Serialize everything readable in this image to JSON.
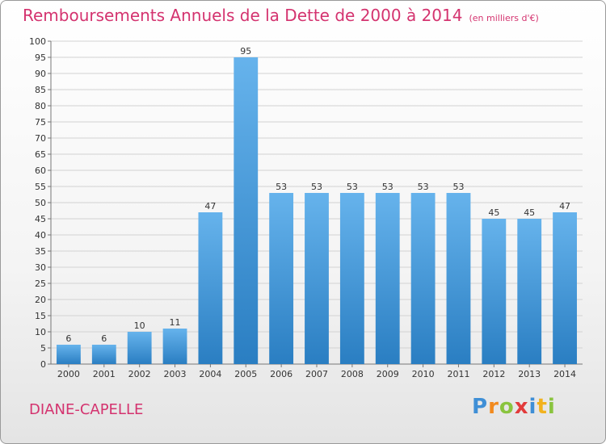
{
  "header": {
    "title": "Remboursements Annuels de la Dette de 2000 à 2014",
    "unit": "(en milliers d'€)"
  },
  "commune": "DIANE-CAPELLE",
  "logo": {
    "text": "Proxiti",
    "letters": [
      {
        "ch": "P",
        "color": "#3f8fd6"
      },
      {
        "ch": "r",
        "color": "#f28a1e"
      },
      {
        "ch": "o",
        "color": "#8ac43f"
      },
      {
        "ch": "x",
        "color": "#e23b3b"
      },
      {
        "ch": "i",
        "color": "#3f8fd6"
      },
      {
        "ch": "t",
        "color": "#f2b21e"
      },
      {
        "ch": "i",
        "color": "#8ac43f"
      }
    ]
  },
  "colors": {
    "bar_light": "#66b3ec",
    "bar_dark": "#2a7ec2",
    "title": "#d4336f"
  },
  "chart_data": {
    "type": "bar",
    "title": "Remboursements Annuels de la Dette de 2000 à 2014",
    "subtitle": "(en milliers d'€)",
    "categories": [
      "2000",
      "2001",
      "2002",
      "2003",
      "2004",
      "2005",
      "2006",
      "2007",
      "2008",
      "2009",
      "2010",
      "2011",
      "2012",
      "2013",
      "2014"
    ],
    "values": [
      6,
      6,
      10,
      11,
      47,
      95,
      53,
      53,
      53,
      53,
      53,
      53,
      45,
      45,
      47
    ],
    "ylim": [
      0,
      100
    ],
    "yticks": [
      0,
      5,
      10,
      15,
      20,
      25,
      30,
      35,
      40,
      45,
      50,
      55,
      60,
      65,
      70,
      75,
      80,
      85,
      90,
      95,
      100
    ],
    "grid": true,
    "legend": "none",
    "data_labels": true
  }
}
